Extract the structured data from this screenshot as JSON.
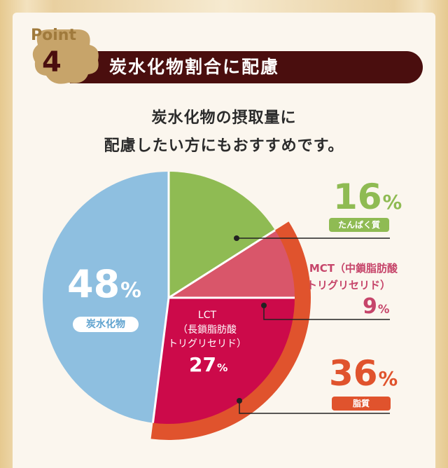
{
  "badge": {
    "word": "Point",
    "number": "4"
  },
  "header": {
    "title": "炭水化物割合に配慮"
  },
  "subtitle": {
    "line1": "炭水化物の摂取量に",
    "line2": "配慮したい方にもおすすめです。"
  },
  "colors": {
    "carb": "#8ebfe0",
    "protein": "#8fbb53",
    "mct": "#d9566a",
    "lct": "#cc0a4a",
    "fat_ring": "#e0532d",
    "header_bg": "#4a0e0e",
    "badge_bg": "#c7a46a"
  },
  "labels": {
    "carb": {
      "value": "48",
      "unit": "%",
      "name": "炭水化物"
    },
    "protein": {
      "value": "16",
      "unit": "%",
      "name": "たんぱく質"
    },
    "mct": {
      "line1": "MCT（中鎖脂肪酸",
      "line2": "トリグリセリド）",
      "value": "9",
      "unit": "%"
    },
    "lct": {
      "line1": "LCT",
      "line2": "（長鎖脂肪酸",
      "line3": "トリグリセリド）",
      "value": "27",
      "unit": "%"
    },
    "fat": {
      "value": "36",
      "unit": "%",
      "name": "脂質"
    }
  },
  "chart_data": {
    "type": "pie",
    "categories": [
      "たんぱく質",
      "MCT（中鎖脂肪酸トリグリセリド）",
      "LCT（長鎖脂肪酸トリグリセリド）",
      "炭水化物"
    ],
    "values": [
      16,
      9,
      27,
      48
    ],
    "groups": [
      {
        "name": "脂質",
        "members": [
          "MCT（中鎖脂肪酸トリグリセリド）",
          "LCT（長鎖脂肪酸トリグリセリド）"
        ],
        "value": 36
      }
    ],
    "start": "12 o'clock",
    "direction": "clockwise"
  }
}
